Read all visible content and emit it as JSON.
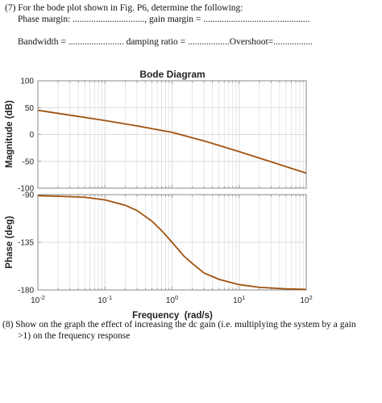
{
  "questions": {
    "q7_line1": "(7) For the bode plot shown in Fig. P6, determine the following:",
    "q7_line2": "Phase margin: ..............................., gain margin = ..............................................",
    "q7_line3": "Bandwidth = ........................ damping ratio = ..................Overshoot=.................",
    "q8_line1": "(8) Show on the graph the effect of increasing the dc gain (i.e. multiplying the system by a gain",
    "q8_line2": ">1) on the frequency response"
  },
  "colors": {
    "curve": "#a0520f",
    "grid": "#dcdcdc",
    "axis": "#8a8a8a"
  },
  "chart_data": [
    {
      "type": "line",
      "title": "Bode Diagram",
      "ylabel": "Magnitude (dB)",
      "xscale": "log",
      "xlim": [
        0.01,
        100
      ],
      "ylim": [
        -100,
        100
      ],
      "yticks": [
        100,
        50,
        0,
        -50,
        -100
      ],
      "ytick_labels": [
        "100",
        "50",
        "0",
        "-50",
        "-100"
      ],
      "grid": true,
      "series": [
        {
          "x": [
            0.01,
            0.03,
            0.1,
            0.3,
            1,
            3,
            10,
            30,
            100
          ],
          "y": [
            45,
            36,
            26,
            16,
            4,
            -12,
            -32,
            -51,
            -72
          ]
        }
      ]
    },
    {
      "type": "line",
      "xlabel": "Frequency  (rad/s)",
      "ylabel": "Phase (deg)",
      "xscale": "log",
      "xlim": [
        0.01,
        100
      ],
      "ylim": [
        -180,
        -90
      ],
      "yticks": [
        -90,
        -135,
        -180
      ],
      "ytick_labels": [
        "-90",
        "-135",
        "-180"
      ],
      "xtick_labels": [
        "10-2",
        "10-1",
        "100",
        "101",
        "102"
      ],
      "grid": true,
      "series": [
        {
          "x": [
            0.01,
            0.02,
            0.05,
            0.1,
            0.2,
            0.3,
            0.5,
            0.7,
            1,
            1.5,
            2,
            3,
            5,
            10,
            20,
            50,
            100
          ],
          "y": [
            -91,
            -91.5,
            -92.5,
            -95,
            -100,
            -105,
            -115,
            -124,
            -135,
            -148,
            -155,
            -164,
            -170,
            -175,
            -177.5,
            -179,
            -179.5
          ]
        }
      ]
    }
  ]
}
